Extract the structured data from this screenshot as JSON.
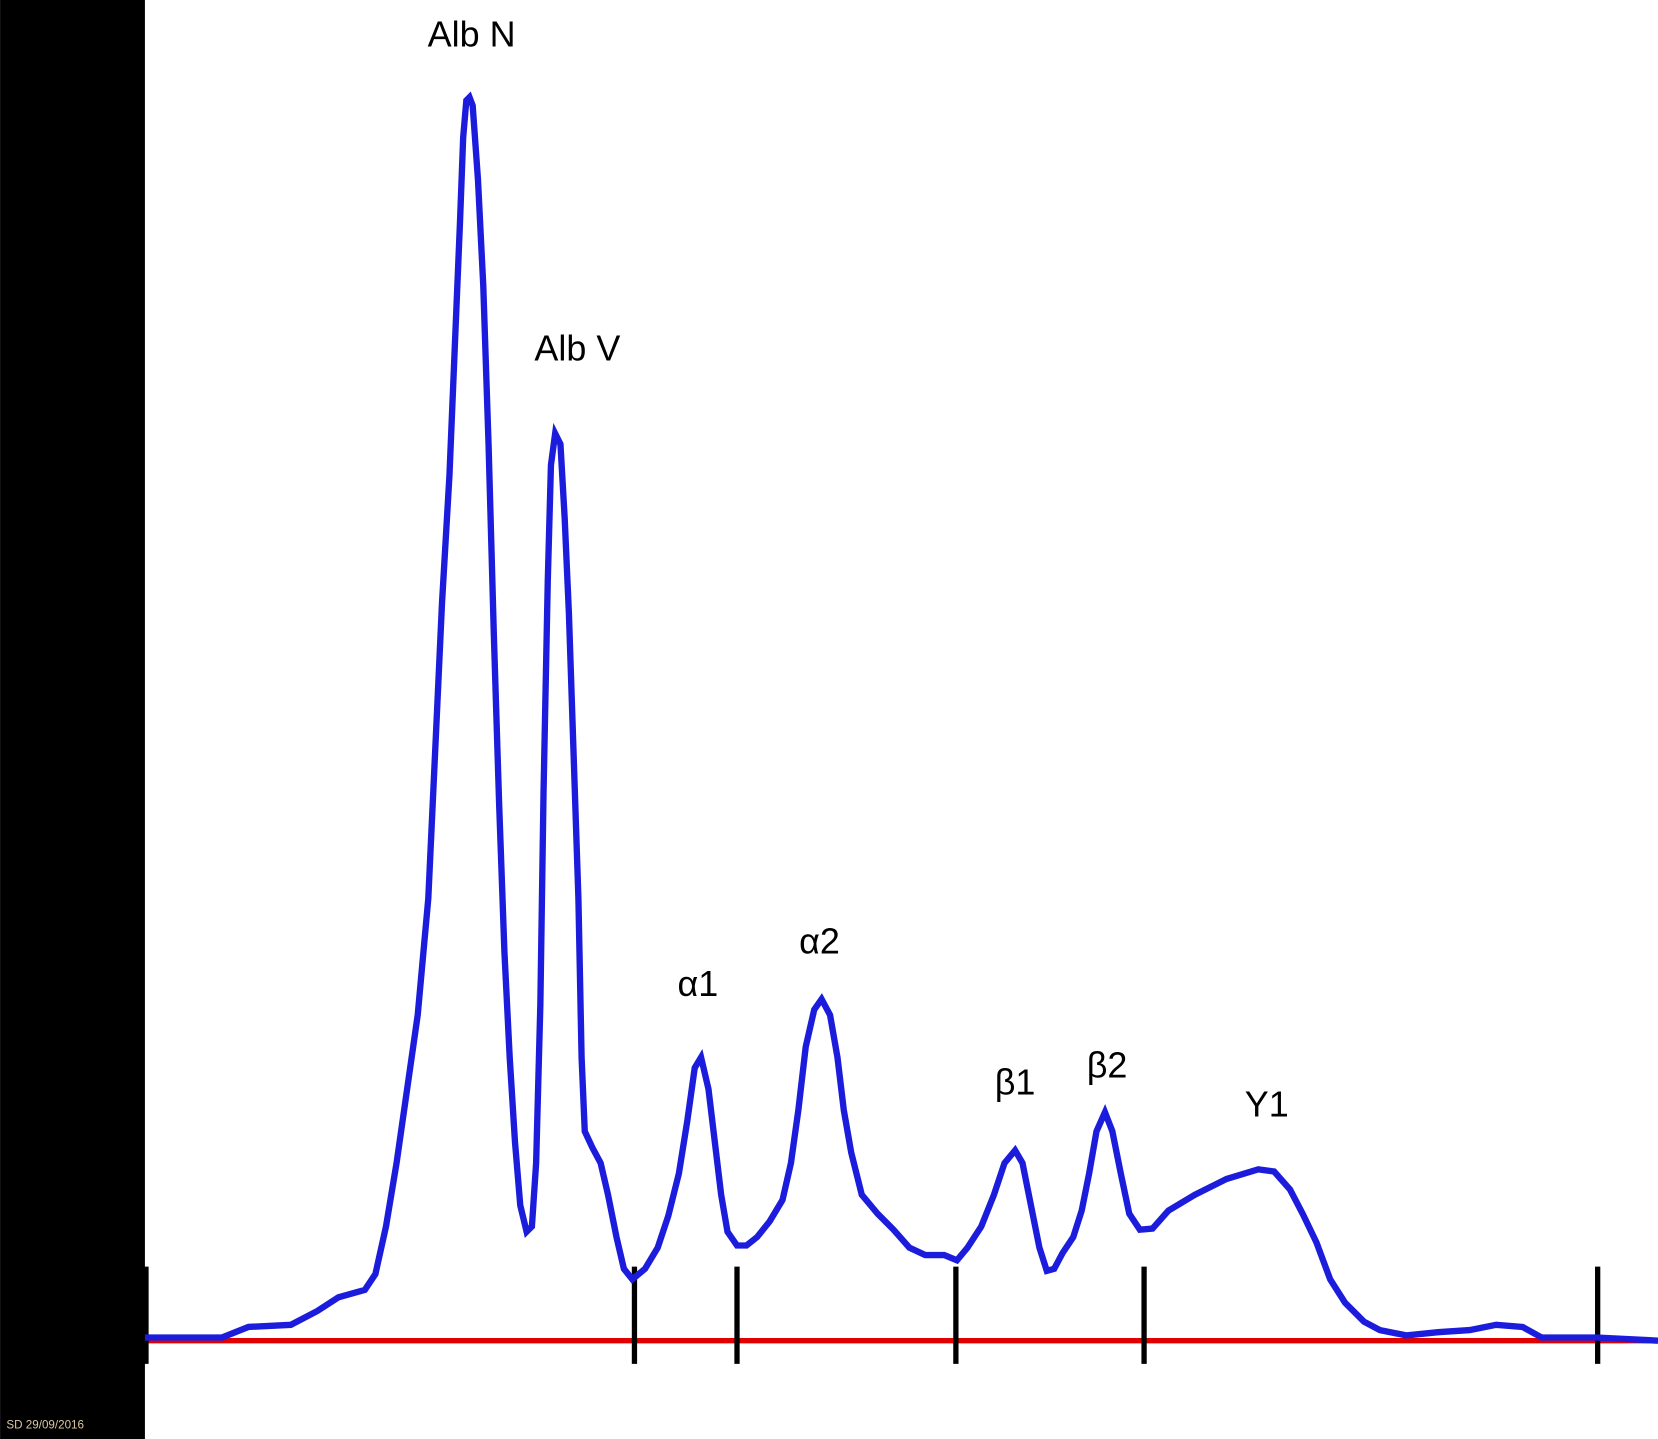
{
  "chart_data": {
    "type": "line",
    "x": [
      137,
      210,
      235,
      275,
      300,
      320,
      345,
      355,
      365,
      375,
      385,
      395,
      405,
      412,
      418,
      425,
      430,
      435,
      438,
      441,
      444,
      447,
      452,
      457,
      462,
      467,
      472,
      477,
      482,
      487,
      492,
      498,
      503,
      507,
      511,
      514,
      518,
      521,
      525,
      530,
      534,
      538,
      542,
      547,
      550,
      553,
      560,
      568,
      575,
      583,
      590,
      598,
      610,
      622,
      632,
      642,
      650,
      657,
      663,
      670,
      676,
      682,
      688,
      697,
      706,
      716,
      728,
      740,
      748,
      755,
      762,
      770,
      777,
      785,
      792,
      798,
      805,
      815,
      830,
      845,
      860,
      875,
      893,
      905,
      915,
      928,
      940,
      950,
      960,
      967,
      975,
      983,
      990,
      997,
      1005,
      1015,
      1023,
      1030,
      1037,
      1045,
      1052,
      1060,
      1068,
      1078,
      1090,
      1105,
      1130,
      1160,
      1190,
      1205,
      1220,
      1232,
      1245,
      1258,
      1272,
      1290,
      1305,
      1330,
      1360,
      1390,
      1415,
      1440,
      1458,
      1510,
      1568
    ],
    "series": [
      {
        "color": "#1c1cdc",
        "values": [
          3,
          3,
          13,
          15,
          28,
          41,
          48,
          63,
          108,
          168,
          238,
          308,
          418,
          568,
          698,
          818,
          938,
          1058,
          1138,
          1173,
          1176,
          1168,
          1098,
          998,
          848,
          668,
          508,
          368,
          268,
          188,
          128,
          103,
          108,
          168,
          318,
          518,
          718,
          828,
          858,
          848,
          778,
          688,
          568,
          418,
          268,
          198,
          183,
          168,
          138,
          98,
          68,
          58,
          68,
          88,
          118,
          158,
          208,
          258,
          268,
          238,
          188,
          138,
          103,
          90,
          90,
          98,
          113,
          133,
          168,
          218,
          278,
          313,
          323,
          308,
          268,
          218,
          178,
          138,
          120,
          105,
          88,
          81,
          81,
          76,
          88,
          108,
          138,
          168,
          180,
          168,
          128,
          88,
          66,
          68,
          83,
          98,
          123,
          158,
          198,
          216,
          198,
          158,
          120,
          105,
          106,
          123,
          138,
          153,
          162,
          160,
          143,
          120,
          93,
          58,
          36,
          18,
          10,
          5,
          8,
          10,
          15,
          13,
          3,
          3,
          0
        ]
      }
    ],
    "xlim": [
      137,
      1568
    ],
    "ylim": [
      -93,
      1268
    ],
    "xticks": [
      138,
      600,
      697,
      904,
      1082,
      1511
    ],
    "baseline_color": "#e00000",
    "peak_labels": [
      "Alb N",
      "Alb V",
      "α1",
      "α2",
      "β1",
      "β2",
      "Y1"
    ],
    "footer": "SD 29/09/2016"
  }
}
